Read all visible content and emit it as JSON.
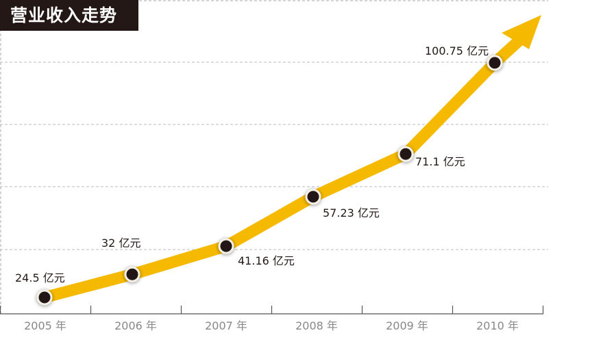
{
  "chart_data": {
    "type": "line",
    "title": "营业收入走势",
    "categories": [
      "2005 年",
      "2006 年",
      "2007 年",
      "2008 年",
      "2009 年",
      "2010 年"
    ],
    "values": [
      24.5,
      32,
      41.16,
      57.23,
      71.1,
      100.75
    ],
    "data_labels": [
      "24.5 亿元",
      "32 亿元",
      "41.16 亿元",
      "57.23 亿元",
      "71.1 亿元",
      "100.75 亿元"
    ],
    "unit": "亿元",
    "xlabel": "",
    "ylabel": "",
    "grid": true,
    "legend": "none",
    "colors": {
      "line": "#F5BA00",
      "point": "#231815",
      "title_bg": "#231815"
    }
  }
}
